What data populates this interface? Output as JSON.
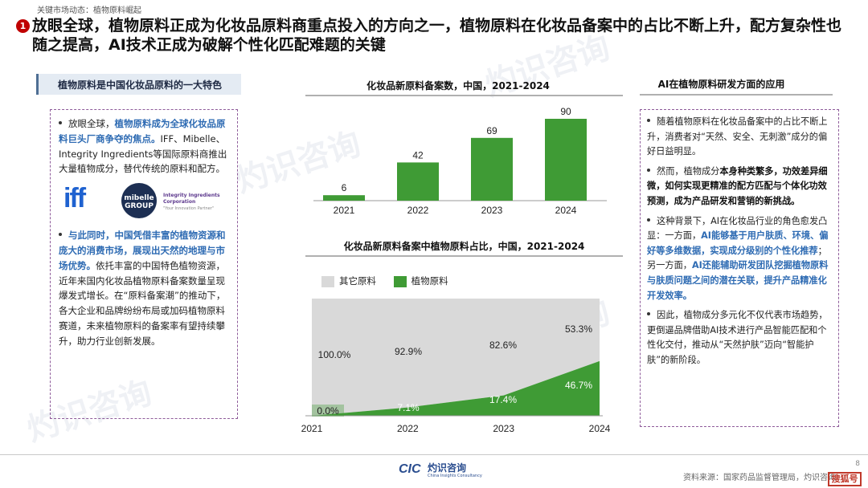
{
  "breadcrumb": "关键市场动态：植物原料崛起",
  "title": {
    "badge": "❶",
    "text": "放眼全球，植物原料正成为化妆品原料商重点投入的方向之一，植物原料在化妆品备案中的占比不断上升，配方复杂性也随之提高，AI技术正成为破解个性化匹配难题的关键"
  },
  "left_panel": {
    "header": "植物原料是中国化妆品原料的一大特色",
    "para1_plain": "放眼全球，",
    "para1_hl": "植物原料成为全球化妆品原料巨头厂商争夺的焦点。",
    "para1_rest": "IFF、Mibelle、Integrity Ingredients等国际原料商推出大量植物成分，替代传统的原料和配方。",
    "logo_iff": "iff",
    "logo_mibelle": "mibelle",
    "logo_mibelle_sub": "GROUP",
    "logo_ii": "Integrity Ingredients Corporation",
    "logo_ii_sub": "\"Your Innovation Partner\"",
    "para2_hl": "与此同时，中国凭借丰富的植物资源和庞大的消费市场，展现出天然的地理与市场优势。",
    "para2_rest": "依托丰富的中国特色植物资源，近年来国内化妆品植物原料备案数量呈现爆发式增长。在“原料备案潮”的推动下，各大企业和品牌纷纷布局或加码植物原料赛道，未来植物原料的备案率有望持续攀升，助力行业创新发展。"
  },
  "chart_data": [
    {
      "type": "bar",
      "title": "化妆品新原料备案数，中国，2021-2024",
      "categories": [
        "2021",
        "2022",
        "2023",
        "2024"
      ],
      "values": [
        6,
        42,
        69,
        90
      ],
      "color": "#3f9b35"
    },
    {
      "type": "area",
      "title": "化妆品新原料备案中植物原料占比，中国，2021-2024",
      "categories": [
        "2021",
        "2022",
        "2023",
        "2024"
      ],
      "series": [
        {
          "name": "其它原料",
          "values": [
            100.0,
            92.9,
            82.6,
            53.3
          ],
          "labels": [
            "100.0%",
            "92.9%",
            "82.6%",
            "53.3%"
          ],
          "color": "#d9d9d9"
        },
        {
          "name": "植物原料",
          "values": [
            0.0,
            7.1,
            17.4,
            46.7
          ],
          "labels": [
            "0.0%",
            "7.1%",
            "17.4%",
            "46.7%"
          ],
          "color": "#3f9b35"
        }
      ],
      "ylim": [
        0,
        100
      ]
    }
  ],
  "right_panel": {
    "header": "AI在植物原料研发方面的应用",
    "p1": "随着植物原料在化妆品备案中的占比不断上升，消费者对“天然、安全、无刺激”成分的偏好日益明显。",
    "p2_a": "然而，植物成分",
    "p2_b": "本身种类繁多，功效差异细微，如何实现更精准的配方匹配与个体化功效预测，成为产品研发和营销的新挑战。",
    "p3_a": "这种背景下，AI在化妆品行业的角色愈发凸显：一方面，",
    "p3_b": "AI能够基于用户肤质、环境、偏好等多维数据，实现成分级别的个性化推荐",
    "p3_c": "；另一方面，",
    "p3_d": "AI还能辅助研发团队挖掘植物原料与肤质问题之间的潜在关联，提升产品精准化开发效率。",
    "p4": "因此，植物成分多元化不仅代表市场趋势，更倒逼品牌借助AI技术进行产品智能匹配和个性化交付，推动从“天然护肤”迈向“智能护肤”的新阶段。"
  },
  "footer": {
    "logo_cic": "CIC",
    "logo_cn": "灼识咨询",
    "logo_en": "China Insights Consultancy",
    "source": "资料来源：国家药品监督管理局，灼识咨询",
    "page": "8",
    "stamp": "搜狐号"
  },
  "watermark": "灼识咨询"
}
